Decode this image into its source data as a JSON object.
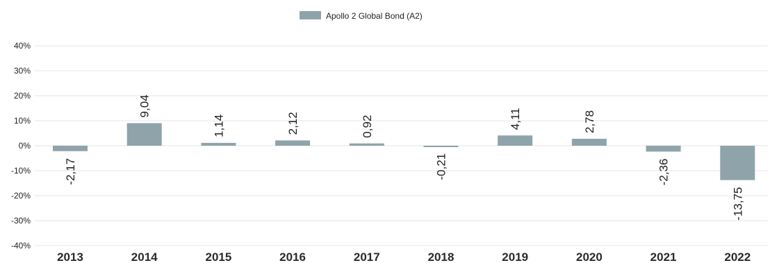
{
  "chart_data": {
    "type": "bar",
    "categories": [
      "2013",
      "2014",
      "2015",
      "2016",
      "2017",
      "2018",
      "2019",
      "2020",
      "2021",
      "2022"
    ],
    "series": [
      {
        "name": "Apollo 2 Global Bond (A2)",
        "values": [
          -2.17,
          9.04,
          1.14,
          2.12,
          0.92,
          -0.21,
          4.11,
          2.78,
          -2.36,
          -13.75
        ],
        "labels": [
          "-2,17",
          "9,04",
          "1,14",
          "2,12",
          "0,92",
          "-0,21",
          "4,11",
          "2,78",
          "-2,36",
          "-13,75"
        ],
        "color": "#8fa3ab"
      }
    ],
    "ylim": [
      -40,
      40
    ],
    "yticks": [
      40,
      30,
      20,
      10,
      0,
      -10,
      -20,
      -30,
      -40
    ],
    "ytick_labels": [
      "40%",
      "30%",
      "20%",
      "10%",
      "0%",
      "-10%",
      "-20%",
      "-30%",
      "-40%"
    ],
    "grid": true,
    "legend_position": "top-center",
    "title": "",
    "xlabel": "",
    "ylabel": ""
  }
}
